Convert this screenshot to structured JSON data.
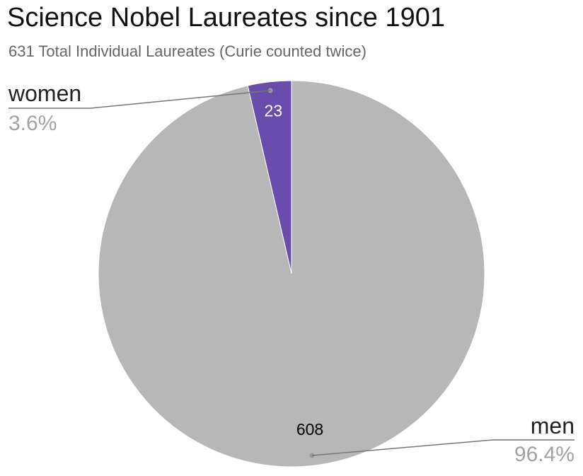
{
  "chart_data": {
    "type": "pie",
    "title": "Science Nobel Laureates since 1901",
    "subtitle": "631 Total Individual Laureates (Curie counted twice)",
    "slices": [
      {
        "name": "women",
        "value": 23,
        "percent_label": "3.6%",
        "color": "#6a4cad",
        "value_color": "#ffffff"
      },
      {
        "name": "men",
        "value": 608,
        "percent_label": "96.4%",
        "color": "#b7b7b7",
        "value_color": "#000000"
      }
    ],
    "legend_placement": "outside labels with leader lines",
    "start_angle": "12 o'clock, counter-clockwise from women"
  }
}
